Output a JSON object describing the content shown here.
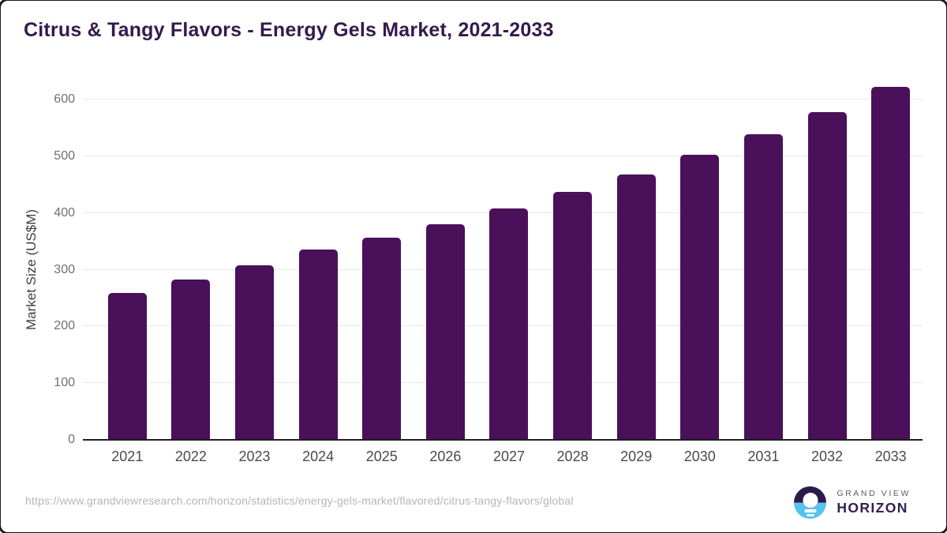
{
  "title": "Citrus & Tangy Flavors - Energy Gels Market, 2021-2033",
  "footer": {
    "source_url": "https://www.grandviewresearch.com/horizon/statistics/energy-gels-market/flavored/citrus-tangy-flavors/global",
    "brand_top": "GRAND VIEW",
    "brand_bottom": "HORIZON"
  },
  "colors": {
    "bar": "#4a1059",
    "title": "#341a4d",
    "axis_line": "#1f1f1f",
    "gridline": "#e8e8e8",
    "logo_purple": "#2c1a4a",
    "logo_blue": "#58c2ef"
  },
  "chart_data": {
    "type": "bar",
    "title": "Citrus & Tangy Flavors - Energy Gels Market, 2021-2033",
    "categories": [
      "2021",
      "2022",
      "2023",
      "2024",
      "2025",
      "2026",
      "2027",
      "2028",
      "2029",
      "2030",
      "2031",
      "2032",
      "2033"
    ],
    "values": [
      259,
      283,
      308,
      335,
      356,
      380,
      408,
      437,
      468,
      503,
      539,
      578,
      622
    ],
    "xlabel": "",
    "ylabel": "Market Size (US$M)",
    "ylim": [
      0,
      600
    ],
    "yticks": [
      0,
      100,
      200,
      300,
      400,
      500,
      600
    ],
    "grid": true,
    "legend": null,
    "bar_color": "#4a1059"
  }
}
